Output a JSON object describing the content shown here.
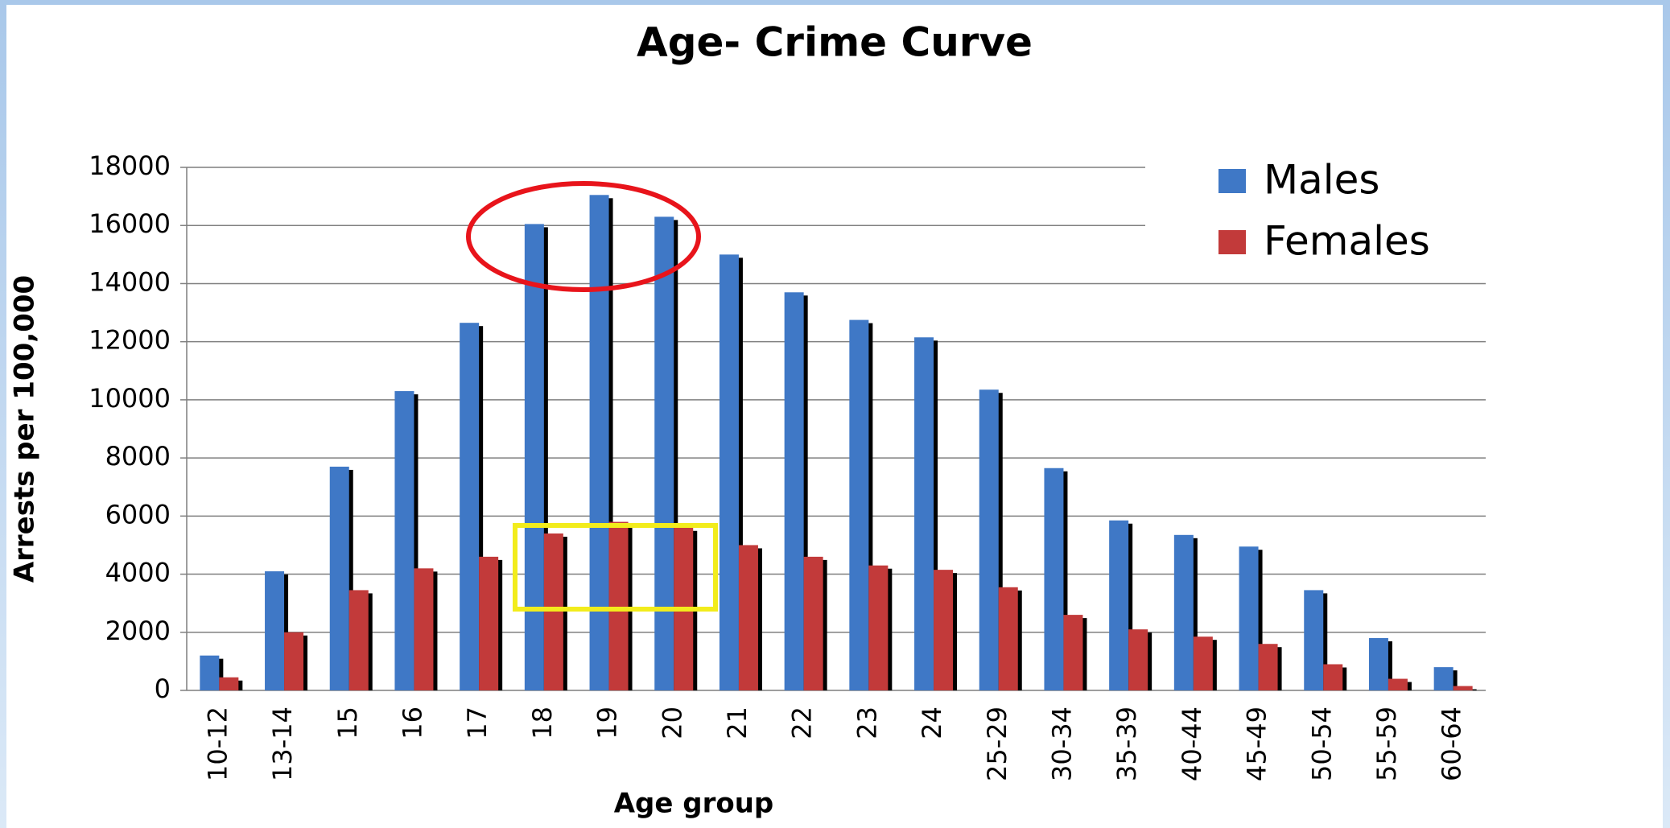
{
  "chart_data": {
    "type": "bar",
    "title": "Age- Crime Curve",
    "x_label": "Age group",
    "y_label": "Arrests per 100,000",
    "categories": [
      "10-12",
      "13-14",
      "15",
      "16",
      "17",
      "18",
      "19",
      "20",
      "21",
      "22",
      "23",
      "24",
      "25-29",
      "30-34",
      "35-39",
      "40-44",
      "45-49",
      "50-54",
      "55-59",
      "60-64"
    ],
    "series": [
      {
        "name": "Males",
        "color": "#3f78c6",
        "values": [
          1200,
          4100,
          7700,
          10300,
          12650,
          16050,
          17050,
          16300,
          15000,
          13700,
          12750,
          12150,
          10350,
          7650,
          5850,
          5350,
          4950,
          3450,
          1800,
          800
        ]
      },
      {
        "name": "Females",
        "color": "#c23a3a",
        "values": [
          450,
          2000,
          3450,
          4200,
          4600,
          5400,
          5800,
          5600,
          5000,
          4600,
          4300,
          4150,
          3550,
          2600,
          2100,
          1850,
          1600,
          900,
          400,
          150
        ]
      }
    ],
    "ylim": [
      0,
      18000
    ],
    "yticks": [
      0,
      2000,
      4000,
      6000,
      8000,
      10000,
      12000,
      14000,
      16000,
      18000
    ],
    "grid": true,
    "legend": "upper right"
  }
}
